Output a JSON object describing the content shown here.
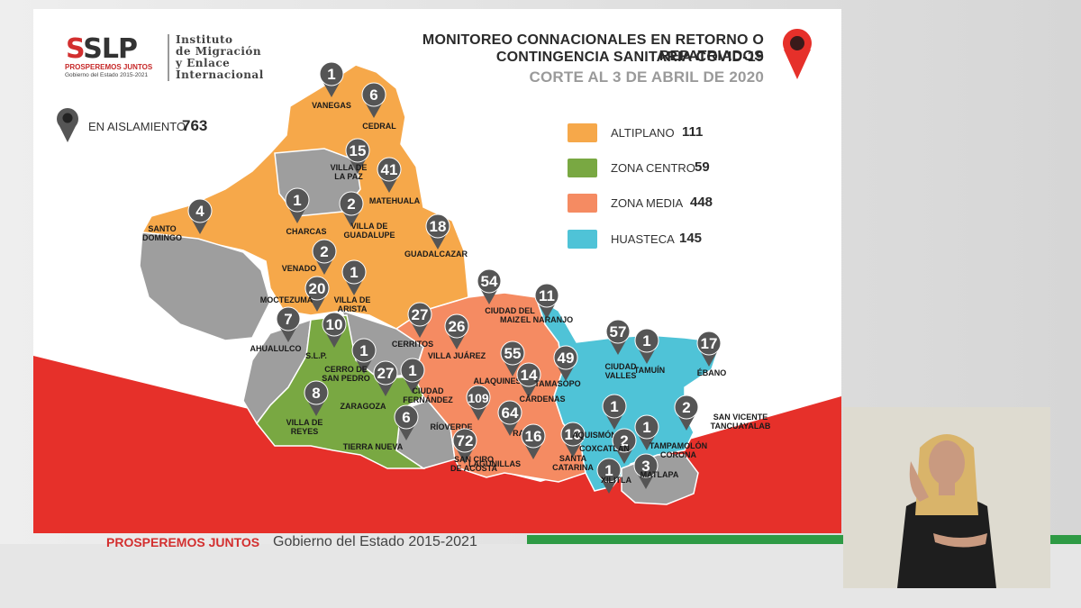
{
  "logo": {
    "name": "SLP",
    "tagline": "PROSPEREMOS JUNTOS",
    "subtitle": "Gobierno del Estado 2015-2021"
  },
  "institute": {
    "line1": "Instituto",
    "line2": "de Migración",
    "line3": "y Enlace",
    "line4": "Internacional"
  },
  "title": {
    "line1": "MONITOREO CONNACIONALES EN RETORNO O REPATRIADOS",
    "line2": "CONTINGENCIA SANITARIA COVID-19",
    "line3": "CORTE AL 3 DE ABRIL DE 2020"
  },
  "isolation": {
    "label": "EN AISLAMIENTO",
    "value": "763"
  },
  "legend": [
    {
      "label": "ALTIPLANO",
      "value": "111",
      "color": "#f6a84a"
    },
    {
      "label": "ZONA CENTRO",
      "value": "59",
      "color": "#79a842"
    },
    {
      "label": "ZONA MEDIA",
      "value": "448",
      "color": "#f58b62"
    },
    {
      "label": "HUASTECA",
      "value": "145",
      "color": "#4fc3d7"
    }
  ],
  "colors": {
    "red": "#e6302a",
    "green": "#2e9a45",
    "gray": "#9e9e9e",
    "marker": "#555555"
  },
  "footer": {
    "tagline": "PROSPEREMOS JUNTOS",
    "government": "Gobierno del Estado 2015-2021"
  },
  "markers": [
    {
      "value": "1",
      "place": "VANEGAS",
      "region": "altiplano"
    },
    {
      "value": "6",
      "place": "CEDRAL",
      "region": "altiplano"
    },
    {
      "value": "15",
      "place": "VILLA DE LA PAZ",
      "region": "altiplano"
    },
    {
      "value": "41",
      "place": "MATEHUALA",
      "region": "altiplano"
    },
    {
      "value": "4",
      "place": "SANTO DOMINGO",
      "region": "altiplano"
    },
    {
      "value": "1",
      "place": "CHARCAS",
      "region": "altiplano"
    },
    {
      "value": "2",
      "place": "VILLA DE GUADALUPE",
      "region": "altiplano"
    },
    {
      "value": "18",
      "place": "GUADALCAZAR",
      "region": "altiplano"
    },
    {
      "value": "2",
      "place": "VENADO",
      "region": "altiplano"
    },
    {
      "value": "1",
      "place": "VILLA DE ARISTA",
      "region": "altiplano"
    },
    {
      "value": "20",
      "place": "MOCTEZUMA",
      "region": "altiplano"
    },
    {
      "value": "7",
      "place": "AHUALULCO",
      "region": "centro"
    },
    {
      "value": "10",
      "place": "S.L.P.",
      "region": "centro"
    },
    {
      "value": "1",
      "place": "CERRO DE SAN PEDRO",
      "region": "centro"
    },
    {
      "value": "27",
      "place": "ZARAGOZA",
      "region": "centro"
    },
    {
      "value": "8",
      "place": "VILLA DE REYES",
      "region": "centro"
    },
    {
      "value": "6",
      "place": "TIERRA NUEVA",
      "region": "centro"
    },
    {
      "value": "27",
      "place": "CERRITOS",
      "region": "media"
    },
    {
      "value": "54",
      "place": "CIUDAD DEL MAIZ",
      "region": "media"
    },
    {
      "value": "26",
      "place": "VILLA JUÁREZ",
      "region": "media"
    },
    {
      "value": "1",
      "place": "CIUDAD FERNÁNDEZ",
      "region": "media"
    },
    {
      "value": "55",
      "place": "ALAQUINES",
      "region": "media"
    },
    {
      "value": "14",
      "place": "CÁRDENAS",
      "region": "media"
    },
    {
      "value": "109",
      "place": "RÍOVERDE",
      "region": "media"
    },
    {
      "value": "64",
      "place": "RAYÓN",
      "region": "media"
    },
    {
      "value": "72",
      "place": "SAN CIRO DE ACOSTA",
      "region": "media"
    },
    {
      "value": "16",
      "place": "LAGUNILLAS",
      "region": "media"
    },
    {
      "value": "10",
      "place": "SANTA CATARINA",
      "region": "media"
    },
    {
      "value": "11",
      "place": "EL NARANJO",
      "region": "huasteca"
    },
    {
      "value": "49",
      "place": "TAMASOPO",
      "region": "huasteca"
    },
    {
      "value": "57",
      "place": "CIUDAD VALLES",
      "region": "huasteca"
    },
    {
      "value": "1",
      "place": "TAMUÍN",
      "region": "huasteca"
    },
    {
      "value": "17",
      "place": "ÉBANO",
      "region": "huasteca"
    },
    {
      "value": "1",
      "place": "AQUISMÓN",
      "region": "huasteca"
    },
    {
      "value": "2",
      "place": "SAN VICENTE TANCUAYALAB",
      "region": "huasteca"
    },
    {
      "value": "1",
      "place": "TAMPAMOLÓN CORONA",
      "region": "huasteca"
    },
    {
      "value": "2",
      "place": "COXCATLÁN",
      "region": "huasteca"
    },
    {
      "value": "1",
      "place": "XILITLA",
      "region": "huasteca"
    },
    {
      "value": "3",
      "place": "MATLAPA",
      "region": "huasteca"
    }
  ]
}
